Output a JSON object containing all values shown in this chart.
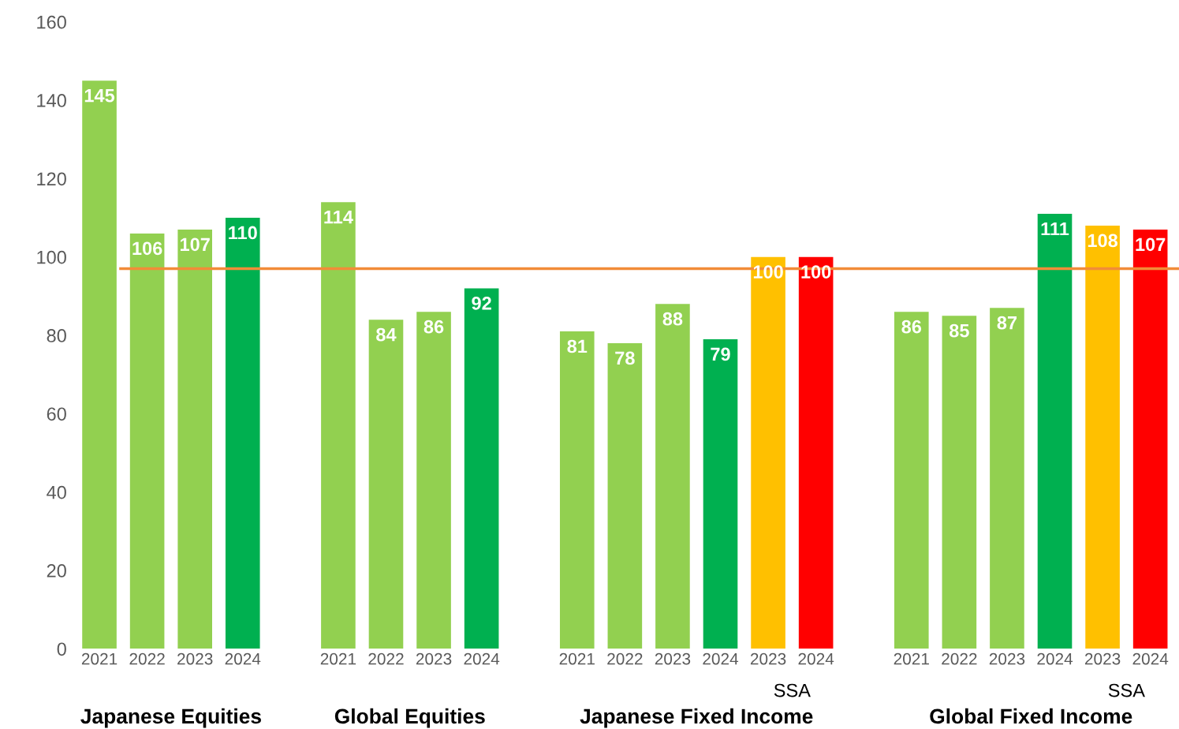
{
  "chart_data": {
    "type": "bar",
    "categories": [
      "2021",
      "2022",
      "2023",
      "2024",
      null,
      "2021",
      "2022",
      "2023",
      "2024",
      null,
      "2021",
      "2022",
      "2023",
      "2024",
      "2023",
      "2024",
      null,
      "2021",
      "2022",
      "2023",
      "2024",
      "2023",
      "2024"
    ],
    "values": [
      145,
      106,
      107,
      110,
      null,
      114,
      84,
      86,
      92,
      null,
      81,
      78,
      88,
      79,
      100,
      100,
      null,
      86,
      85,
      87,
      111,
      108,
      107
    ],
    "colors": [
      "#92d050",
      "#92d050",
      "#92d050",
      "#00b050",
      null,
      "#92d050",
      "#92d050",
      "#92d050",
      "#00b050",
      null,
      "#92d050",
      "#92d050",
      "#92d050",
      "#00b050",
      "#ffc000",
      "#ff0000",
      null,
      "#92d050",
      "#92d050",
      "#92d050",
      "#00b050",
      "#ffc000",
      "#ff0000"
    ],
    "data_labels": true,
    "ylim": [
      0,
      160
    ],
    "yticks": [
      0,
      20,
      40,
      60,
      80,
      100,
      120,
      140,
      160
    ],
    "grid": false,
    "ref_lines": [
      {
        "axis": "y",
        "value": 97,
        "color": "#f28c38"
      }
    ],
    "annotations": [
      "Japanese Equities",
      "Global Equities",
      "Japanese Fixed Income",
      "Global Fixed Income",
      "SSA",
      "SSA"
    ]
  }
}
